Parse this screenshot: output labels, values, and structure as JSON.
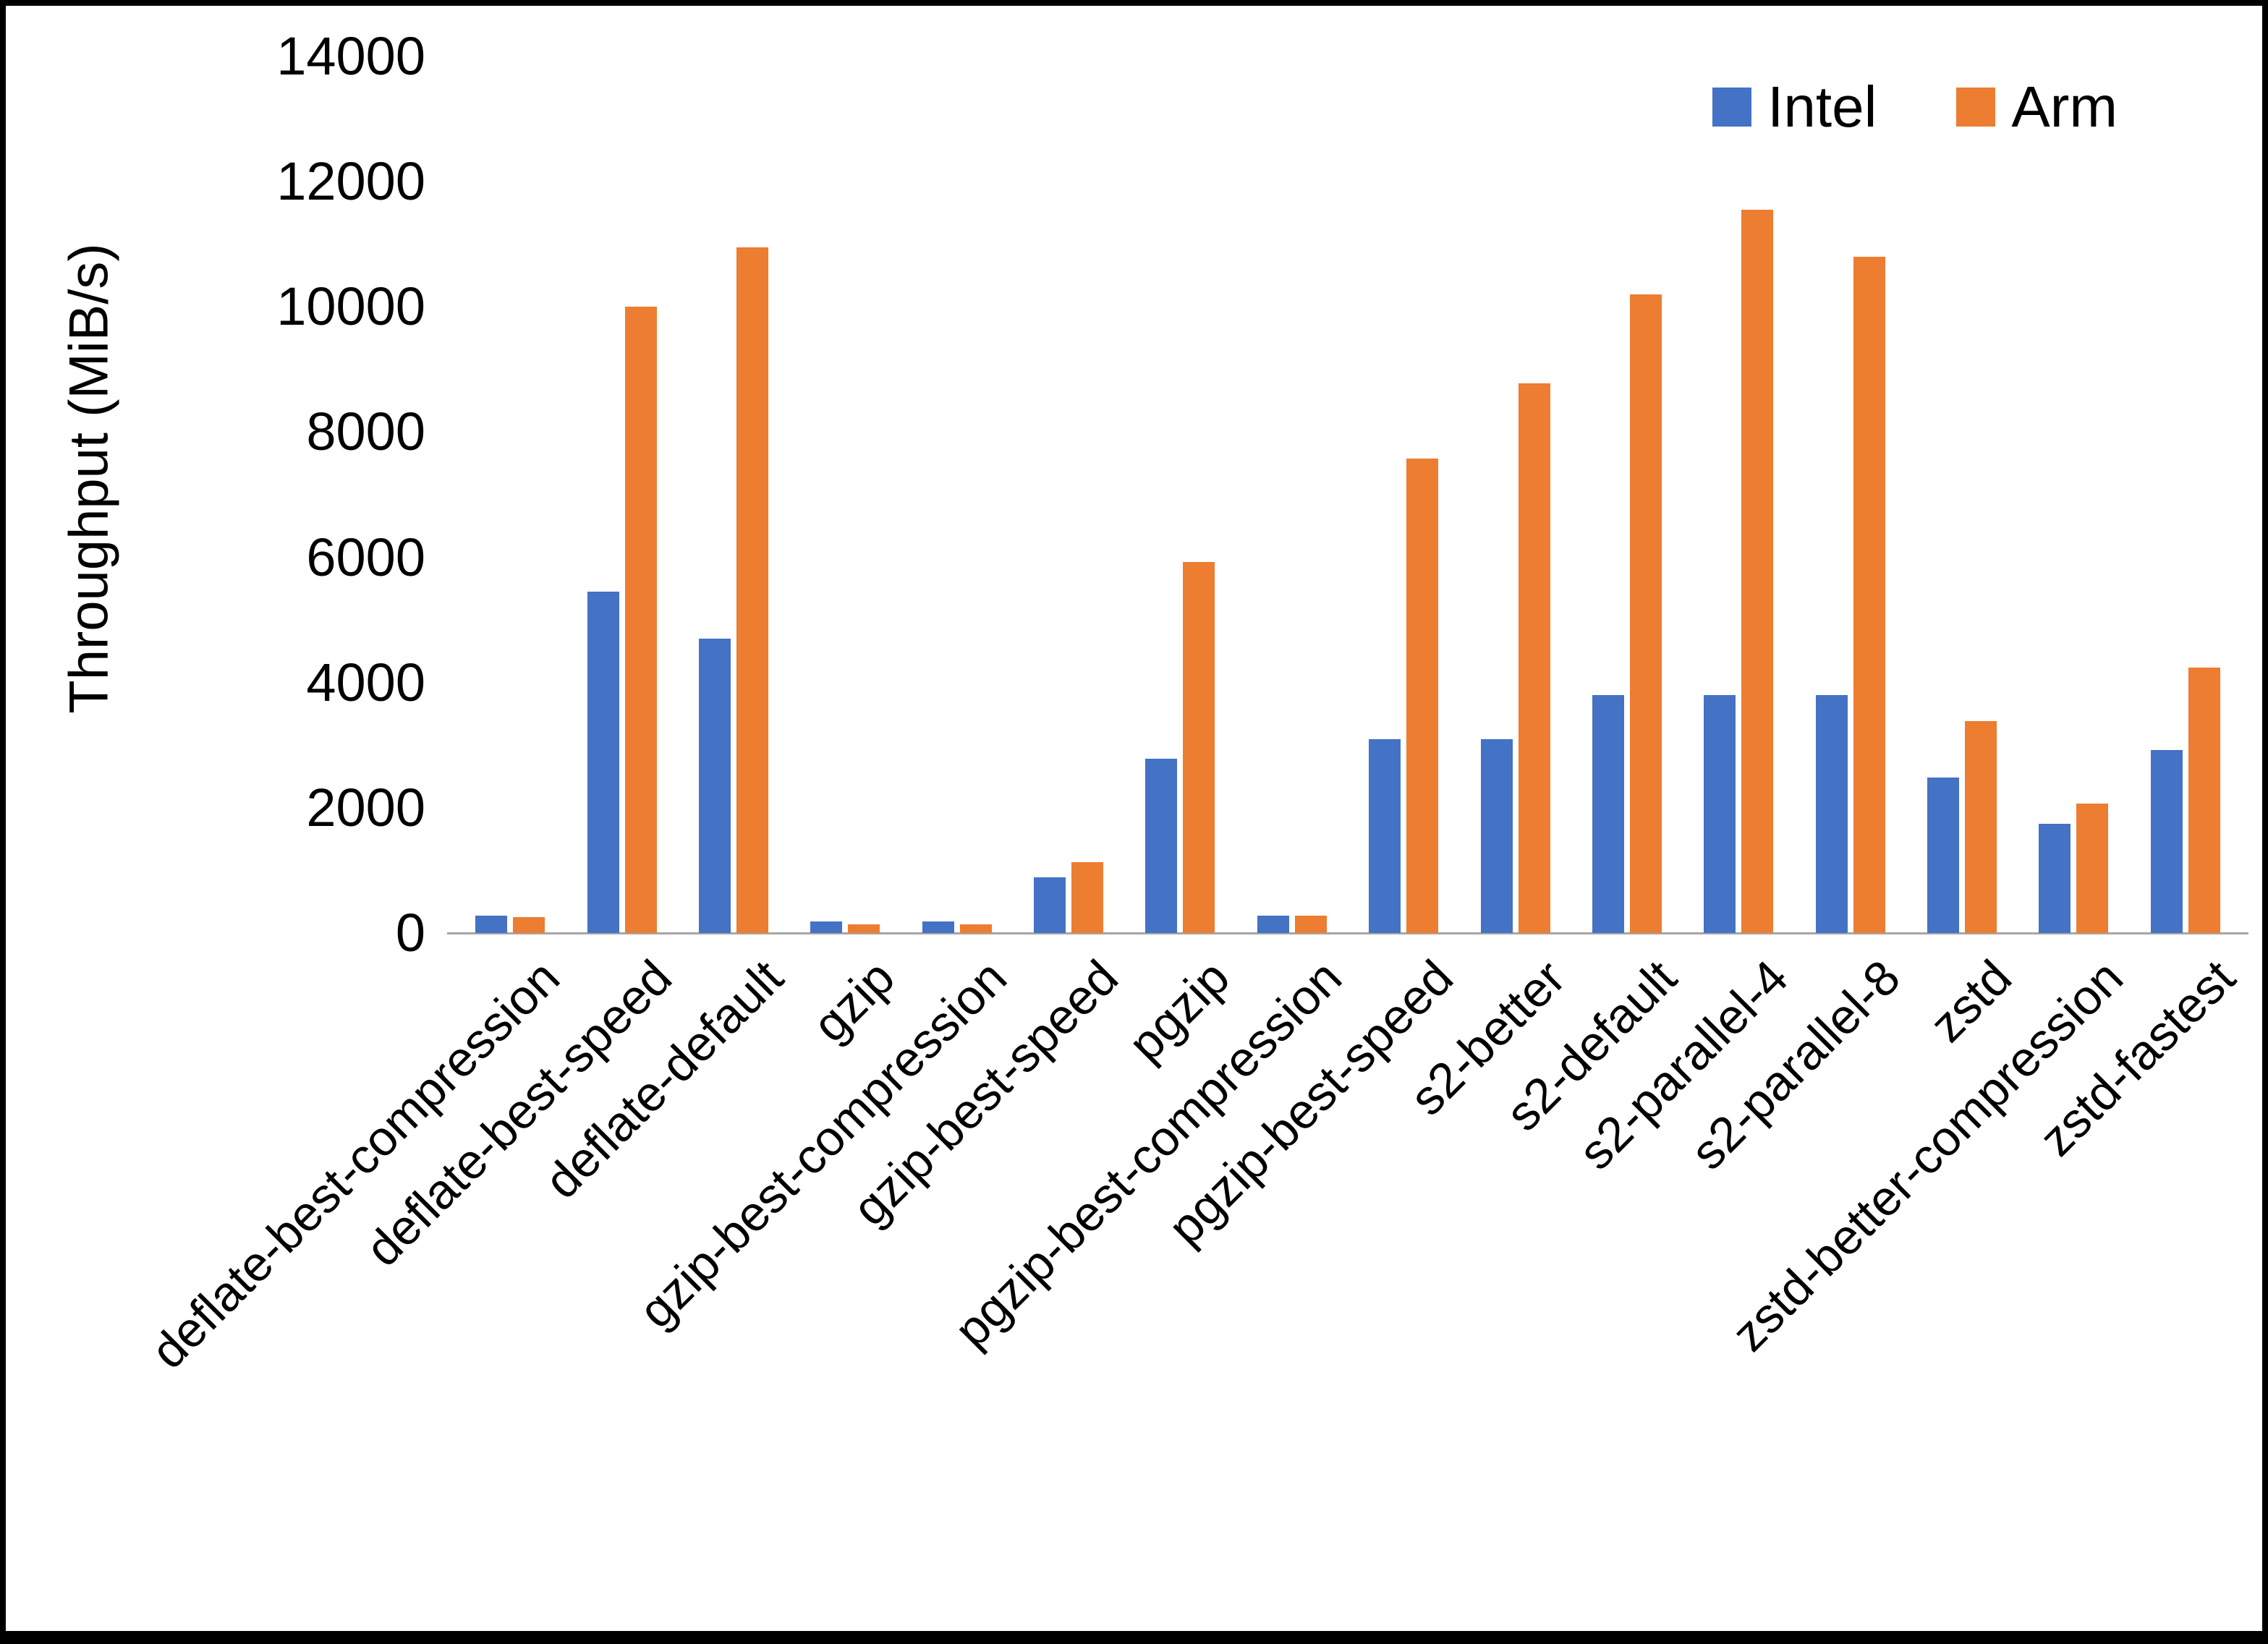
{
  "chart": {
    "y_axis_title": "Throughput (MiB/s)",
    "ytick_labels": [
      "0",
      "2000",
      "4000",
      "6000",
      "8000",
      "10000",
      "12000",
      "14000"
    ]
  },
  "chart_data": {
    "type": "bar",
    "title": "",
    "xlabel": "",
    "ylabel": "Throughput (MiB/s)",
    "ylim": [
      0,
      14000
    ],
    "ytick_step": 2000,
    "grid": false,
    "legend_position": "top-right",
    "categories": [
      "deflate-best-compression",
      "deflate-best-speed",
      "deflate-default",
      "gzip",
      "gzip-best-compression",
      "gzip-best-speed",
      "pgzip",
      "pgzip-best-compression",
      "pgzip-best-speed",
      "s2-better",
      "s2-default",
      "s2-parallel-4",
      "s2-parallel-8",
      "zstd",
      "zstd-better-compression",
      "zstd-fastest"
    ],
    "series": [
      {
        "name": "Intel",
        "color": "#4472C4",
        "values": [
          280,
          5450,
          4700,
          190,
          190,
          890,
          2780,
          280,
          3100,
          3100,
          3800,
          3800,
          3800,
          2480,
          1740,
          2920
        ]
      },
      {
        "name": "Arm",
        "color": "#ED7D31",
        "values": [
          260,
          10000,
          10950,
          140,
          140,
          1130,
          5930,
          280,
          7580,
          8780,
          10200,
          11550,
          10800,
          3390,
          2070,
          4240
        ]
      }
    ]
  }
}
